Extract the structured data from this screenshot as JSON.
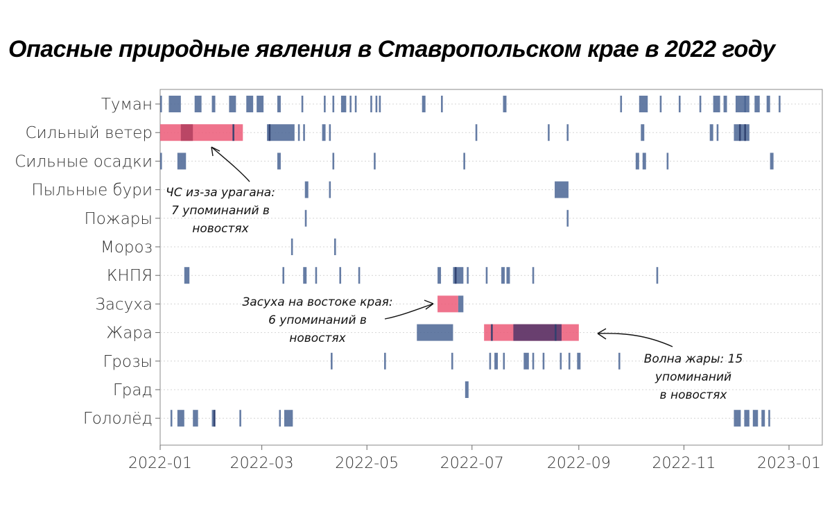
{
  "title": "Опасные природные явления в Ставропольском крае в 2022 году",
  "colors": {
    "normal": "#4a6594",
    "highlight": "#ec5a78",
    "overlap": "#2d3f6e",
    "dark_highlight": "#5a3a6b"
  },
  "chart_data": {
    "type": "timeline",
    "title": "Опасные природные явления в Ставропольском крае в 2022 году",
    "xlim": [
      "2022-01-01",
      "2023-01-01"
    ],
    "x_ticks": [
      "2022-01",
      "2022-03",
      "2022-05",
      "2022-07",
      "2022-09",
      "2022-11",
      "2023-01"
    ],
    "grid": "horizontal dotted lines",
    "categories": [
      "Туман",
      "Сильный ветер",
      "Сильные осадки",
      "Пыльные бури",
      "Пожары",
      "Мороз",
      "КНПЯ",
      "Засуха",
      "Жара",
      "Грозы",
      "Град",
      "Гололёд"
    ],
    "events": {
      "Туман": [
        [
          "2022-01-01",
          "2022-01-02"
        ],
        [
          "2022-01-06",
          "2022-01-13"
        ],
        [
          "2022-01-21",
          "2022-01-25"
        ],
        [
          "2022-01-31",
          "2022-02-02"
        ],
        [
          "2022-02-10",
          "2022-02-14"
        ],
        [
          "2022-02-20",
          "2022-02-24"
        ],
        [
          "2022-02-26",
          "2022-03-02"
        ],
        [
          "2022-03-10",
          "2022-03-12"
        ],
        [
          "2022-03-24",
          "2022-03-25"
        ],
        [
          "2022-04-06",
          "2022-04-07"
        ],
        [
          "2022-04-11",
          "2022-04-12"
        ],
        [
          "2022-04-16",
          "2022-04-19"
        ],
        [
          "2022-04-21",
          "2022-04-22"
        ],
        [
          "2022-04-24",
          "2022-04-25"
        ],
        [
          "2022-05-03",
          "2022-05-04"
        ],
        [
          "2022-05-06",
          "2022-05-07"
        ],
        [
          "2022-05-08",
          "2022-05-09"
        ],
        [
          "2022-06-02",
          "2022-06-04"
        ],
        [
          "2022-06-13",
          "2022-06-14"
        ],
        [
          "2022-07-19",
          "2022-07-21"
        ],
        [
          "2022-09-25",
          "2022-09-26"
        ],
        [
          "2022-10-06",
          "2022-10-11"
        ],
        [
          "2022-10-18",
          "2022-10-19"
        ],
        [
          "2022-10-29",
          "2022-10-30"
        ],
        [
          "2022-11-10",
          "2022-11-11"
        ],
        [
          "2022-11-18",
          "2022-11-22"
        ],
        [
          "2022-11-24",
          "2022-11-26"
        ],
        [
          "2022-12-01",
          "2022-12-09"
        ],
        [
          "2022-12-06",
          "2022-12-07"
        ],
        [
          "2022-12-12",
          "2022-12-15"
        ],
        [
          "2022-12-19",
          "2022-12-21"
        ],
        [
          "2022-12-26",
          "2022-12-27"
        ]
      ],
      "Сильный ветер": [
        [
          "2022-01-01",
          "2022-02-18",
          "hl"
        ],
        [
          "2022-01-13",
          "2022-01-20",
          "hl2"
        ],
        [
          "2022-02-12",
          "2022-02-13",
          "dark"
        ],
        [
          "2022-03-04",
          "2022-03-20"
        ],
        [
          "2022-03-05",
          "2022-03-06",
          "dark"
        ],
        [
          "2022-03-22",
          "2022-03-23"
        ],
        [
          "2022-03-25",
          "2022-03-26"
        ],
        [
          "2022-04-05",
          "2022-04-07"
        ],
        [
          "2022-04-09",
          "2022-04-10"
        ],
        [
          "2022-07-03",
          "2022-07-04"
        ],
        [
          "2022-08-14",
          "2022-08-15"
        ],
        [
          "2022-08-25",
          "2022-08-26"
        ],
        [
          "2022-10-07",
          "2022-10-09"
        ],
        [
          "2022-11-16",
          "2022-11-18"
        ],
        [
          "2022-11-20",
          "2022-11-21"
        ],
        [
          "2022-11-30",
          "2022-12-09"
        ],
        [
          "2022-12-03",
          "2022-12-04",
          "dark"
        ],
        [
          "2022-12-06",
          "2022-12-07",
          "dark"
        ]
      ],
      "Сильные осадки": [
        [
          "2022-01-01",
          "2022-01-02"
        ],
        [
          "2022-01-11",
          "2022-01-16"
        ],
        [
          "2022-03-10",
          "2022-03-12"
        ],
        [
          "2022-04-11",
          "2022-04-12"
        ],
        [
          "2022-05-05",
          "2022-05-06"
        ],
        [
          "2022-06-26",
          "2022-06-27"
        ],
        [
          "2022-10-04",
          "2022-10-06"
        ],
        [
          "2022-10-08",
          "2022-10-10"
        ],
        [
          "2022-10-22",
          "2022-10-23"
        ],
        [
          "2022-12-21",
          "2022-12-23"
        ]
      ],
      "Пыльные бури": [
        [
          "2022-03-26",
          "2022-03-28"
        ],
        [
          "2022-04-09",
          "2022-04-10"
        ],
        [
          "2022-08-18",
          "2022-08-26"
        ]
      ],
      "Пожары": [
        [
          "2022-03-26",
          "2022-03-27"
        ],
        [
          "2022-08-25",
          "2022-08-26"
        ]
      ],
      "Мороз": [
        [
          "2022-03-18",
          "2022-03-19"
        ],
        [
          "2022-04-12",
          "2022-04-13"
        ]
      ],
      "КНПЯ": [
        [
          "2022-01-15",
          "2022-01-18"
        ],
        [
          "2022-03-13",
          "2022-03-14"
        ],
        [
          "2022-03-25",
          "2022-03-27"
        ],
        [
          "2022-04-01",
          "2022-04-02"
        ],
        [
          "2022-04-15",
          "2022-04-16"
        ],
        [
          "2022-04-26",
          "2022-04-27"
        ],
        [
          "2022-06-11",
          "2022-06-13"
        ],
        [
          "2022-06-20",
          "2022-06-26"
        ],
        [
          "2022-06-21",
          "2022-06-22",
          "dark"
        ],
        [
          "2022-06-28",
          "2022-06-29"
        ],
        [
          "2022-07-09",
          "2022-07-10"
        ],
        [
          "2022-07-18",
          "2022-07-20"
        ],
        [
          "2022-07-21",
          "2022-07-23"
        ],
        [
          "2022-08-05",
          "2022-08-06"
        ],
        [
          "2022-10-16",
          "2022-10-17"
        ]
      ],
      "Засуха": [
        [
          "2022-06-11",
          "2022-06-23",
          "hl"
        ],
        [
          "2022-06-23",
          "2022-06-26"
        ]
      ],
      "Жара": [
        [
          "2022-05-30",
          "2022-06-20"
        ],
        [
          "2022-07-08",
          "2022-09-01",
          "hl"
        ],
        [
          "2022-07-12",
          "2022-07-13",
          "dark"
        ],
        [
          "2022-07-25",
          "2022-08-22",
          "dark2"
        ],
        [
          "2022-08-18",
          "2022-08-19",
          "dark"
        ]
      ],
      "Грозы": [
        [
          "2022-04-10",
          "2022-04-11"
        ],
        [
          "2022-05-11",
          "2022-05-12"
        ],
        [
          "2022-06-19",
          "2022-06-20"
        ],
        [
          "2022-07-11",
          "2022-07-12"
        ],
        [
          "2022-07-14",
          "2022-07-16"
        ],
        [
          "2022-07-19",
          "2022-07-20"
        ],
        [
          "2022-07-31",
          "2022-08-03"
        ],
        [
          "2022-08-05",
          "2022-08-06"
        ],
        [
          "2022-08-11",
          "2022-08-12"
        ],
        [
          "2022-08-21",
          "2022-08-22"
        ],
        [
          "2022-08-26",
          "2022-08-27"
        ],
        [
          "2022-08-31",
          "2022-09-02"
        ],
        [
          "2022-09-24",
          "2022-09-25"
        ]
      ],
      "Град": [
        [
          "2022-06-27",
          "2022-06-29"
        ]
      ],
      "Гололёд": [
        [
          "2022-01-07",
          "2022-01-08"
        ],
        [
          "2022-01-11",
          "2022-01-15"
        ],
        [
          "2022-01-20",
          "2022-01-23"
        ],
        [
          "2022-01-31",
          "2022-02-02"
        ],
        [
          "2022-02-01",
          "2022-02-02",
          "dark"
        ],
        [
          "2022-02-16",
          "2022-02-17"
        ],
        [
          "2022-03-11",
          "2022-03-12"
        ],
        [
          "2022-03-14",
          "2022-03-19"
        ],
        [
          "2022-11-30",
          "2022-12-04"
        ],
        [
          "2022-12-06",
          "2022-12-09"
        ],
        [
          "2022-12-11",
          "2022-12-14"
        ],
        [
          "2022-12-16",
          "2022-12-18"
        ],
        [
          "2022-12-20",
          "2022-12-21"
        ]
      ]
    },
    "annotations": [
      {
        "lines": [
          "ЧС из-за урагана:",
          "7 упоминаний в",
          "новостях"
        ]
      },
      {
        "lines": [
          "Засуха на востоке края:",
          "6 упоминаний в",
          "новостях"
        ]
      },
      {
        "lines": [
          "Волна жары: 15",
          "упоминаний",
          "в новостях"
        ]
      }
    ]
  }
}
